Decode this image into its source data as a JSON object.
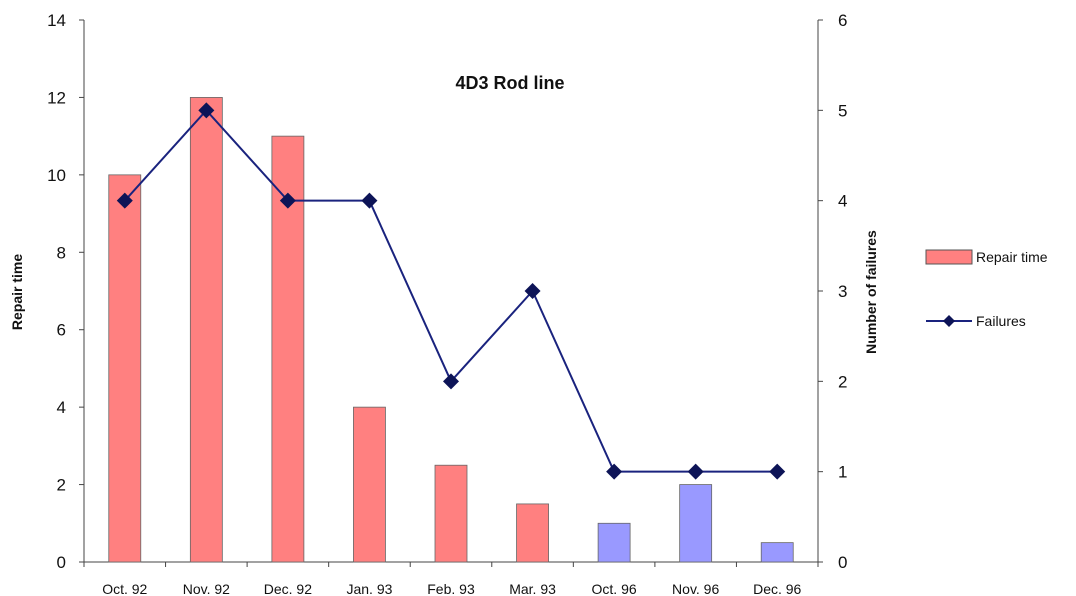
{
  "chart_data": {
    "type": "bar",
    "title": "4D3 Rod line",
    "categories": [
      "Oct. 92",
      "Nov. 92",
      "Dec. 92",
      "Jan. 93",
      "Feb. 93",
      "Mar. 93",
      "Oct. 96",
      "Nov. 96",
      "Dec. 96"
    ],
    "ylabel": "Repair time",
    "y2label": "Number of failures",
    "ylim": [
      0,
      14
    ],
    "y2lim": [
      0,
      6
    ],
    "yticks": [
      "0",
      "2",
      "4",
      "6",
      "8",
      "10",
      "12",
      "14"
    ],
    "y2ticks": [
      "0",
      "1",
      "2",
      "3",
      "4",
      "5",
      "6"
    ],
    "grid": false,
    "legend_position": "right",
    "series": [
      {
        "name": "Repair time",
        "type": "bar",
        "axis": "left",
        "values": [
          10,
          12,
          11,
          4,
          2.5,
          1.5,
          1,
          2,
          0.5
        ],
        "colors": [
          "#ff8080",
          "#ff8080",
          "#ff8080",
          "#ff8080",
          "#ff8080",
          "#ff8080",
          "#9999ff",
          "#9999ff",
          "#9999ff"
        ]
      },
      {
        "name": "Failures",
        "type": "line",
        "axis": "right",
        "marker": "diamond",
        "color": "#1a237e",
        "values": [
          4,
          5,
          4,
          4,
          2,
          3,
          1,
          1,
          1
        ]
      }
    ],
    "legend": [
      "Repair time",
      "Failures"
    ]
  }
}
